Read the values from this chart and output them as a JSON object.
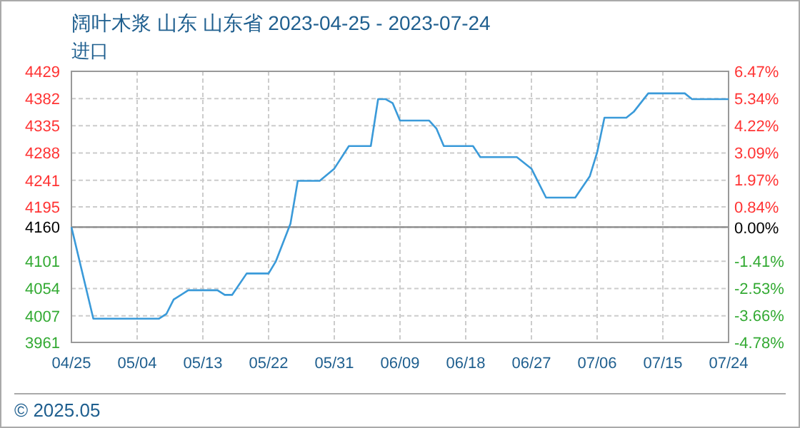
{
  "chart_data": {
    "type": "line",
    "title": "阔叶木浆 山东 山东省 2023-04-25 - 2023-07-24",
    "ylabel": "进口",
    "x": [
      "2023-04-25",
      "2023-04-28",
      "2023-05-07",
      "2023-05-08",
      "2023-05-09",
      "2023-05-11",
      "2023-05-15",
      "2023-05-16",
      "2023-05-17",
      "2023-05-19",
      "2023-05-22",
      "2023-05-23",
      "2023-05-25",
      "2023-05-26",
      "2023-05-29",
      "2023-05-31",
      "2023-06-02",
      "2023-06-05",
      "2023-06-06",
      "2023-06-07",
      "2023-06-08",
      "2023-06-09",
      "2023-06-13",
      "2023-06-14",
      "2023-06-15",
      "2023-06-19",
      "2023-06-20",
      "2023-06-25",
      "2023-06-27",
      "2023-06-29",
      "2023-07-03",
      "2023-07-05",
      "2023-07-06",
      "2023-07-07",
      "2023-07-10",
      "2023-07-11",
      "2023-07-13",
      "2023-07-18",
      "2023-07-19",
      "2023-07-24"
    ],
    "series": [
      {
        "color": "#3a9ad9",
        "values": [
          4160,
          4002,
          4002,
          4010,
          4035,
          4051,
          4051,
          4043,
          4043,
          4080,
          4080,
          4101,
          4166,
          4240,
          4240,
          4261,
          4300,
          4300,
          4381,
          4381,
          4374,
          4344,
          4344,
          4330,
          4300,
          4300,
          4281,
          4281,
          4261,
          4211,
          4211,
          4248,
          4289,
          4349,
          4349,
          4359,
          4391,
          4391,
          4381,
          4381
        ]
      }
    ],
    "xlim": [
      "2023-04-25",
      "2023-07-24"
    ],
    "xticks": [
      {
        "value": "2023-04-25",
        "label": "04/25"
      },
      {
        "value": "2023-05-04",
        "label": "05/04"
      },
      {
        "value": "2023-05-13",
        "label": "05/13"
      },
      {
        "value": "2023-05-22",
        "label": "05/22"
      },
      {
        "value": "2023-05-31",
        "label": "05/31"
      },
      {
        "value": "2023-06-09",
        "label": "06/09"
      },
      {
        "value": "2023-06-18",
        "label": "06/18"
      },
      {
        "value": "2023-06-27",
        "label": "06/27"
      },
      {
        "value": "2023-07-06",
        "label": "07/06"
      },
      {
        "value": "2023-07-15",
        "label": "07/15"
      },
      {
        "value": "2023-07-24",
        "label": "07/24"
      }
    ],
    "ylim": [
      3961,
      4429
    ],
    "yticks": [
      4429,
      4382,
      4335,
      4288,
      4241,
      4195,
      4160,
      4101,
      4054,
      4007,
      3961
    ],
    "y2lim": [
      -4.78,
      6.47
    ],
    "y2ticks": [
      {
        "value": 6.47,
        "label": "6.47%"
      },
      {
        "value": 5.34,
        "label": "5.34%"
      },
      {
        "value": 4.22,
        "label": "4.22%"
      },
      {
        "value": 3.09,
        "label": "3.09%"
      },
      {
        "value": 1.97,
        "label": "1.97%"
      },
      {
        "value": 0.84,
        "label": "0.84%"
      },
      {
        "value": 0,
        "label": "0.00%"
      },
      {
        "value": -1.41,
        "label": "-1.41%"
      },
      {
        "value": -2.53,
        "label": "-2.53%"
      },
      {
        "value": -3.66,
        "label": "-3.66%"
      },
      {
        "value": -4.78,
        "label": "-4.78%"
      }
    ],
    "ref_lines": [
      {
        "axis": "y",
        "value": 4160,
        "color": "#888888"
      }
    ],
    "grid": true,
    "marker": "none",
    "line_style": "solid",
    "annotations": [
      "© 2025.05"
    ]
  }
}
